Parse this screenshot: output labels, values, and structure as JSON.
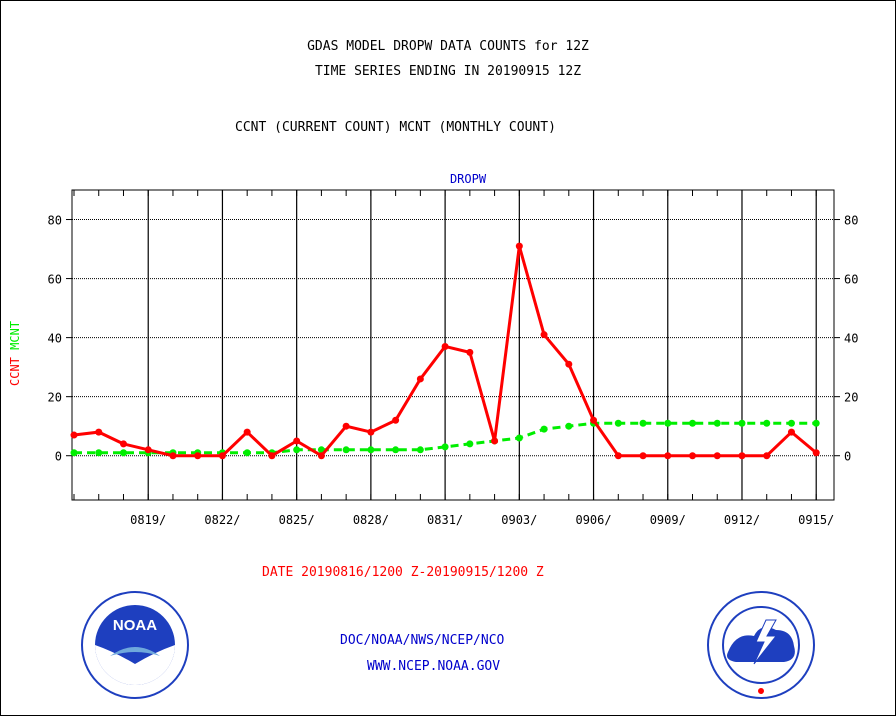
{
  "titles": {
    "line1": "GDAS MODEL DROPW DATA COUNTS for 12Z",
    "line2": "TIME SERIES ENDING IN 20190915 12Z",
    "line3": "CCNT (CURRENT COUNT) MCNT (MONTHLY COUNT)"
  },
  "date_range": "DATE 20190816/1200 Z-20190915/1200 Z",
  "footer": {
    "line1": "DOC/NOAA/NWS/NCEP/NCO",
    "line2": "WWW.NCEP.NOAA.GOV"
  },
  "logos": {
    "left": "NOAA",
    "right": "National Weather Service"
  },
  "colors": {
    "ccnt": "#ff0000",
    "mcnt": "#00ee00",
    "axis_text": "#0000cc"
  },
  "chart_data": {
    "type": "line",
    "title": "DROPW",
    "ylabel_left": "CCNT",
    "ylabel_right": "MCNT",
    "x_ticks": [
      "0819/",
      "0822/",
      "0825/",
      "0828/",
      "0831/",
      "0903/",
      "0906/",
      "0909/",
      "0912/",
      "0915/"
    ],
    "ylim": [
      -15,
      90
    ],
    "y_ticks": [
      0,
      20,
      40,
      60,
      80
    ],
    "grid": true,
    "x": [
      "0816",
      "0817",
      "0818",
      "0819",
      "0820",
      "0821",
      "0822",
      "0823",
      "0824",
      "0825",
      "0826",
      "0827",
      "0828",
      "0829",
      "0830",
      "0831",
      "0901",
      "0902",
      "0903",
      "0904",
      "0905",
      "0906",
      "0907",
      "0908",
      "0909",
      "0910",
      "0911",
      "0912",
      "0913",
      "0914",
      "0915"
    ],
    "series": [
      {
        "name": "CCNT",
        "color": "#ff0000",
        "style": "solid",
        "values": [
          7,
          8,
          4,
          2,
          0,
          0,
          0,
          8,
          0,
          5,
          0,
          10,
          8,
          12,
          26,
          37,
          35,
          5,
          71,
          41,
          31,
          12,
          0,
          0,
          0,
          0,
          0,
          0,
          0,
          8,
          1
        ]
      },
      {
        "name": "MCNT",
        "color": "#00ee00",
        "style": "dashed",
        "values": [
          1,
          1,
          1,
          1,
          1,
          1,
          1,
          1,
          1,
          2,
          2,
          2,
          2,
          2,
          2,
          3,
          4,
          5,
          6,
          9,
          10,
          11,
          11,
          11,
          11,
          11,
          11,
          11,
          11,
          11,
          11
        ]
      }
    ]
  }
}
